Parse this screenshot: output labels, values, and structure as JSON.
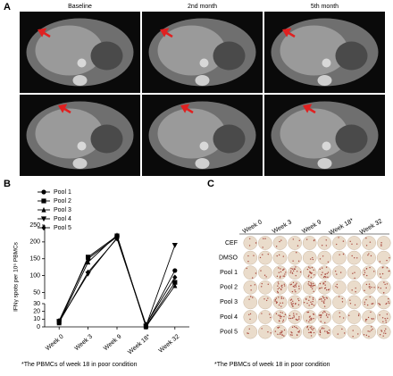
{
  "panels": {
    "a": {
      "label": "A",
      "columns": [
        "Baseline",
        "2nd month",
        "5th month"
      ]
    },
    "b": {
      "label": "B",
      "footnote": "*The PBMCs of week 18 in poor condition"
    },
    "c": {
      "label": "C",
      "weeks": [
        "Week 0",
        "Week 3",
        "Week 9",
        "Week 18*",
        "Week 32"
      ],
      "rows": [
        "CEF",
        "DMSO",
        "Pool 1",
        "Pool 2",
        "Pool 3",
        "Pool 4",
        "Pool 5"
      ],
      "footnote": "*The PBMCs of week 18 in poor condition"
    }
  },
  "chart_data": {
    "type": "line",
    "ylabel": "IFNγ spots per 10⁵ PBMCs",
    "categories": [
      "Week 0",
      "Week 3",
      "Week 9",
      "Week 18*",
      "Week 32"
    ],
    "ylim": [
      0,
      250
    ],
    "ybreak": 30,
    "yticks": [
      0,
      10,
      20,
      30,
      50,
      100,
      150,
      200,
      250
    ],
    "series": [
      {
        "name": "Pool 1",
        "color": "#000000",
        "marker": "circle",
        "values": [
          8,
          150,
          215,
          2,
          115
        ]
      },
      {
        "name": "Pool 2",
        "color": "#000000",
        "marker": "square",
        "values": [
          6,
          155,
          218,
          1,
          80
        ]
      },
      {
        "name": "Pool 3",
        "color": "#000000",
        "marker": "triangle-up",
        "values": [
          5,
          140,
          220,
          0,
          70
        ]
      },
      {
        "name": "Pool 4",
        "color": "#000000",
        "marker": "triangle-down",
        "values": [
          7,
          105,
          212,
          1,
          190
        ]
      },
      {
        "name": "Pool 5",
        "color": "#000000",
        "marker": "diamond",
        "values": [
          6,
          110,
          210,
          3,
          95
        ]
      }
    ]
  }
}
